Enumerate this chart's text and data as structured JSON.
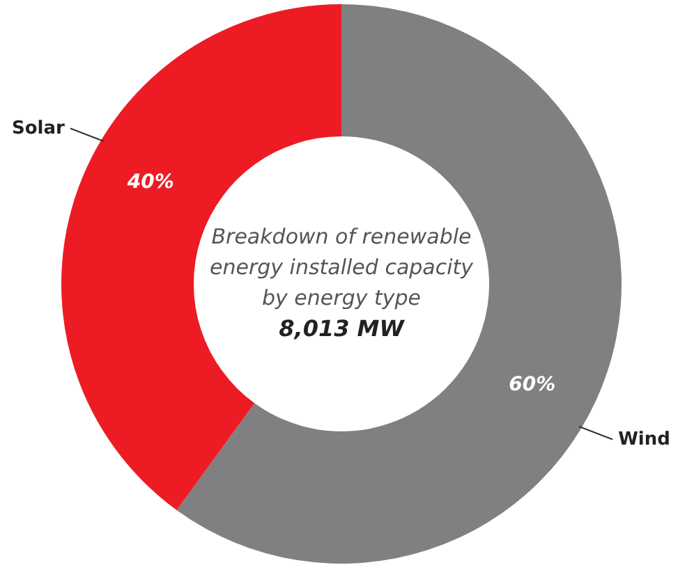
{
  "chart_data": {
    "type": "donut",
    "title": "Breakdown of renewable energy installed capacity by energy type",
    "annotations": [
      "8,013 MW"
    ],
    "categories": [
      "Wind",
      "Solar"
    ],
    "values": [
      60,
      40
    ],
    "value_labels": [
      "60%",
      "40%"
    ],
    "colors": [
      "#808083",
      "#ed1c24"
    ]
  }
}
